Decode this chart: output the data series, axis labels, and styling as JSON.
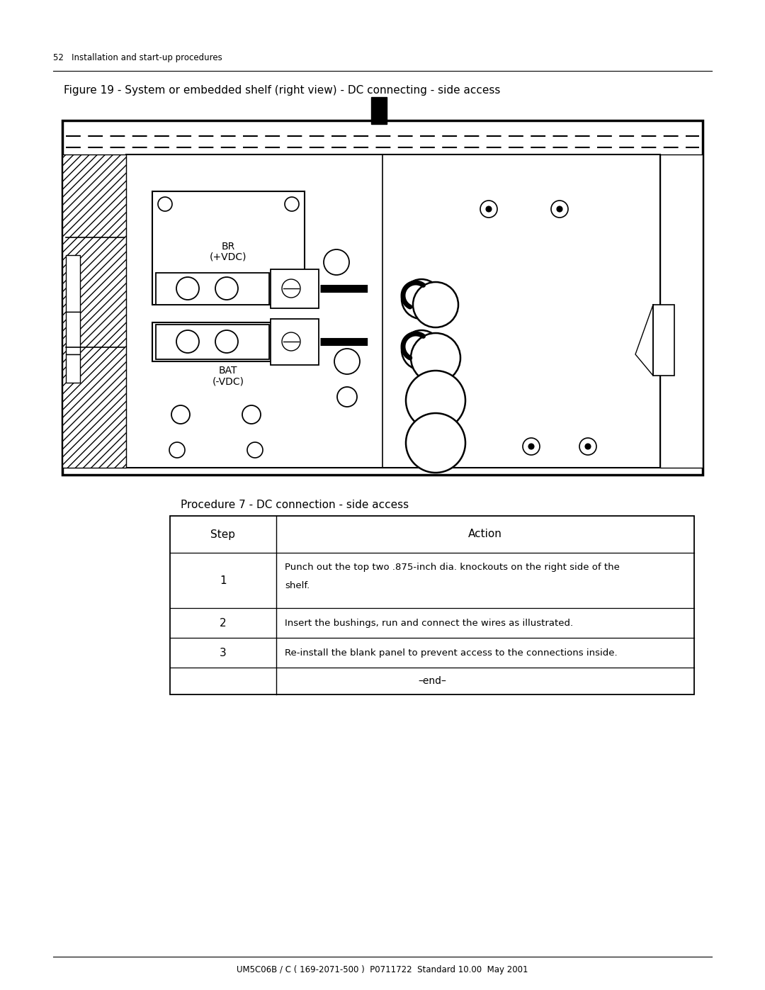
{
  "page_header": "52   Installation and start-up procedures",
  "figure_caption": "Figure 19 - System or embedded shelf (right view) - DC connecting - side access",
  "procedure_title": "Procedure 7 - DC connection - side access",
  "table_headers": [
    "Step",
    "Action"
  ],
  "table_rows": [
    [
      "1",
      "Punch out the top two .875-inch dia. knockouts on the right side of the\nshelf."
    ],
    [
      "2",
      "Insert the bushings, run and connect the wires as illustrated."
    ],
    [
      "3",
      "Re-install the blank panel to prevent access to the connections inside."
    ]
  ],
  "table_footer": "–end–",
  "footer_text": "UM5C06B / C ( 169-2071-500 )  P0711722  Standard 10.00  May 2001",
  "bg_color": "#ffffff",
  "text_color": "#000000",
  "line_color": "#000000"
}
